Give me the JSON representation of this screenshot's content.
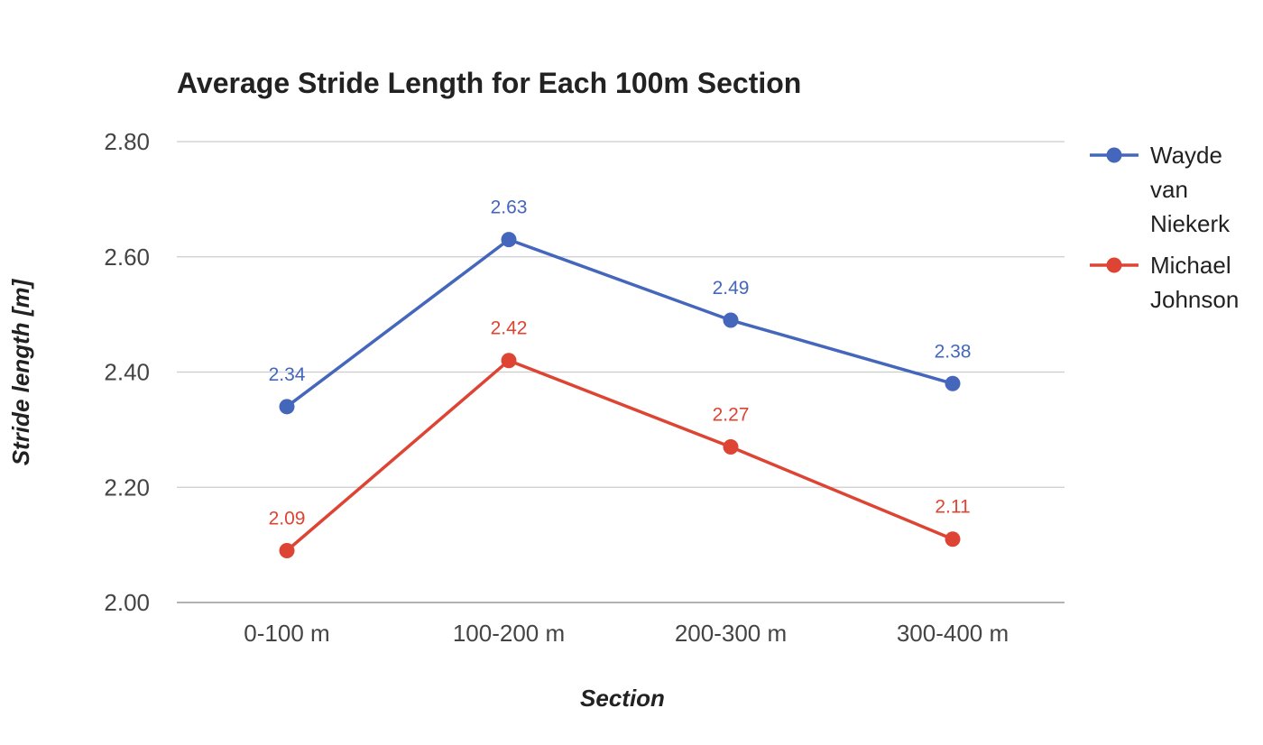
{
  "chart_data": {
    "type": "line",
    "title": "Average Stride Length for Each 100m Section",
    "xlabel": "Section",
    "ylabel": "Stride length [m]",
    "categories": [
      "0-100 m",
      "100-200 m",
      "200-300 m",
      "300-400 m"
    ],
    "ylim": [
      2.0,
      2.8
    ],
    "yticks": [
      "2.00",
      "2.20",
      "2.40",
      "2.60",
      "2.80"
    ],
    "grid": true,
    "legend_position": "right",
    "series": [
      {
        "name": "Wayde van Niekerk",
        "legend_lines": [
          "Wayde",
          "van",
          "Niekerk"
        ],
        "color": "#4466bb",
        "values": [
          2.34,
          2.63,
          2.49,
          2.38
        ],
        "labels": [
          "2.34",
          "2.63",
          "2.49",
          "2.38"
        ]
      },
      {
        "name": "Michael Johnson",
        "legend_lines": [
          "Michael",
          "Johnson"
        ],
        "color": "#dd4433",
        "values": [
          2.09,
          2.42,
          2.27,
          2.11
        ],
        "labels": [
          "2.09",
          "2.42",
          "2.27",
          "2.11"
        ]
      }
    ]
  }
}
